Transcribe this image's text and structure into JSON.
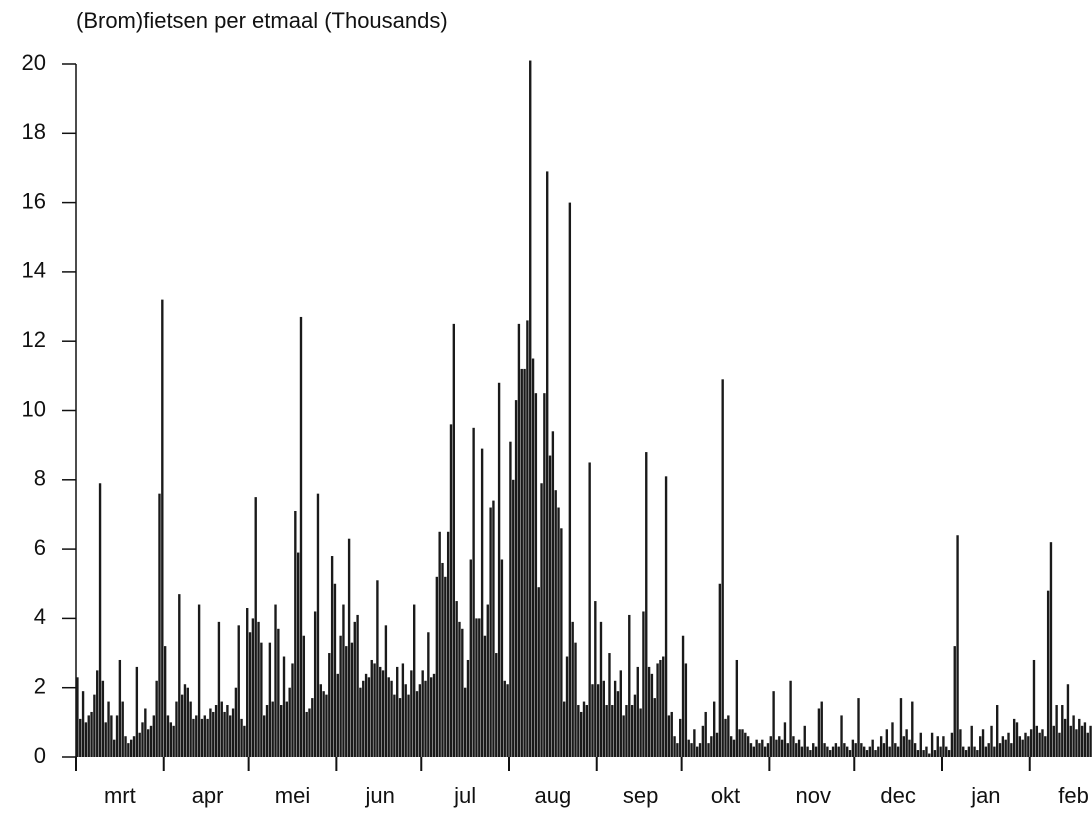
{
  "chart_data": {
    "type": "bar",
    "title": "(Brom)fietsen per etmaal (Thousands)",
    "color": "#1a1a1a",
    "ylim": [
      0,
      20
    ],
    "yticks": [
      0,
      2,
      4,
      6,
      8,
      10,
      12,
      14,
      16,
      18,
      20
    ],
    "categories": [
      null,
      null,
      null,
      null,
      null,
      null,
      null,
      null,
      null,
      null,
      null,
      null,
      null,
      null,
      null,
      "mrt",
      null,
      null,
      null,
      null,
      null,
      null,
      null,
      null,
      null,
      null,
      null,
      null,
      null,
      null,
      null,
      null,
      null,
      null,
      null,
      null,
      null,
      null,
      null,
      null,
      null,
      null,
      null,
      null,
      null,
      null,
      "apr",
      null,
      null,
      null,
      null,
      null,
      null,
      null,
      null,
      null,
      null,
      null,
      null,
      null,
      null,
      null,
      null,
      null,
      null,
      null,
      null,
      null,
      null,
      null,
      null,
      null,
      null,
      null,
      null,
      null,
      "mei",
      null,
      null,
      null,
      null,
      null,
      null,
      null,
      null,
      null,
      null,
      null,
      null,
      null,
      null,
      null,
      null,
      null,
      null,
      null,
      null,
      null,
      null,
      null,
      null,
      null,
      null,
      null,
      null,
      null,
      null,
      "jun",
      null,
      null,
      null,
      null,
      null,
      null,
      null,
      null,
      null,
      null,
      null,
      null,
      null,
      null,
      null,
      null,
      null,
      null,
      null,
      null,
      null,
      null,
      null,
      null,
      null,
      null,
      null,
      null,
      null,
      "jul",
      null,
      null,
      null,
      null,
      null,
      null,
      null,
      null,
      null,
      null,
      null,
      null,
      null,
      null,
      null,
      null,
      null,
      null,
      null,
      null,
      null,
      null,
      null,
      null,
      null,
      null,
      null,
      null,
      null,
      null,
      "aug",
      null,
      null,
      null,
      null,
      null,
      null,
      null,
      null,
      null,
      null,
      null,
      null,
      null,
      null,
      null,
      null,
      null,
      null,
      null,
      null,
      null,
      null,
      null,
      null,
      null,
      null,
      null,
      null,
      null,
      null,
      "sep",
      null,
      null,
      null,
      null,
      null,
      null,
      null,
      null,
      null,
      null,
      null,
      null,
      null,
      null,
      null,
      null,
      null,
      null,
      null,
      null,
      null,
      null,
      null,
      null,
      null,
      null,
      null,
      null,
      null,
      "okt",
      null,
      null,
      null,
      null,
      null,
      null,
      null,
      null,
      null,
      null,
      null,
      null,
      null,
      null,
      null,
      null,
      null,
      null,
      null,
      null,
      null,
      null,
      null,
      null,
      null,
      null,
      null,
      null,
      null,
      null,
      "nov",
      null,
      null,
      null,
      null,
      null,
      null,
      null,
      null,
      null,
      null,
      null,
      null,
      null,
      null,
      null,
      null,
      null,
      null,
      null,
      null,
      null,
      null,
      null,
      null,
      null,
      null,
      null,
      null,
      null,
      "dec",
      null,
      null,
      null,
      null,
      null,
      null,
      null,
      null,
      null,
      null,
      null,
      null,
      null,
      null,
      null,
      null,
      null,
      null,
      null,
      null,
      null,
      null,
      null,
      null,
      null,
      null,
      null,
      null,
      null,
      null,
      "jan",
      null,
      null,
      null,
      null,
      null,
      null,
      null,
      null,
      null,
      null,
      null,
      null,
      null,
      null,
      null,
      null,
      null,
      null,
      null,
      null,
      null,
      null,
      null,
      null,
      null,
      null,
      null,
      null,
      null,
      null,
      "feb",
      null,
      null,
      null,
      null,
      null,
      null
    ],
    "values": [
      2.3,
      1.1,
      1.9,
      1.0,
      1.2,
      1.3,
      1.8,
      2.5,
      7.9,
      2.2,
      1.0,
      1.6,
      1.2,
      0.5,
      1.2,
      2.8,
      1.6,
      0.6,
      0.4,
      0.5,
      0.6,
      2.6,
      0.7,
      1.0,
      1.4,
      0.8,
      0.9,
      1.2,
      2.2,
      7.6,
      13.2,
      3.2,
      1.2,
      1.0,
      0.9,
      1.6,
      4.7,
      1.8,
      2.1,
      2.0,
      1.6,
      1.1,
      1.2,
      4.4,
      1.1,
      1.2,
      1.1,
      1.4,
      1.3,
      1.5,
      3.9,
      1.6,
      1.3,
      1.5,
      1.2,
      1.4,
      2.0,
      3.8,
      1.1,
      0.9,
      4.3,
      3.6,
      4.0,
      7.5,
      3.9,
      3.3,
      1.2,
      1.5,
      3.3,
      1.6,
      4.4,
      3.7,
      1.5,
      2.9,
      1.6,
      2.0,
      2.7,
      7.1,
      5.9,
      12.7,
      3.5,
      1.3,
      1.4,
      1.7,
      4.2,
      7.6,
      2.1,
      1.9,
      1.8,
      3.0,
      5.8,
      5.0,
      2.4,
      3.5,
      4.4,
      3.2,
      6.3,
      3.3,
      3.9,
      4.1,
      2.0,
      2.2,
      2.4,
      2.3,
      2.8,
      2.7,
      5.1,
      2.6,
      2.5,
      3.8,
      2.3,
      2.2,
      1.8,
      2.6,
      1.7,
      2.7,
      2.1,
      1.8,
      2.5,
      4.4,
      1.9,
      2.1,
      2.5,
      2.2,
      3.6,
      2.3,
      2.4,
      5.2,
      6.5,
      5.6,
      5.2,
      6.5,
      9.6,
      12.5,
      4.5,
      3.9,
      3.7,
      2.0,
      2.8,
      5.7,
      9.5,
      4.0,
      4.0,
      8.9,
      3.5,
      4.4,
      7.2,
      7.4,
      3.0,
      10.8,
      5.7,
      2.2,
      2.1,
      9.1,
      8.0,
      10.3,
      12.5,
      11.2,
      11.2,
      12.6,
      20.1,
      11.5,
      10.5,
      4.9,
      7.9,
      10.5,
      16.9,
      8.7,
      9.4,
      7.7,
      7.2,
      6.6,
      1.6,
      2.9,
      16.0,
      3.9,
      3.3,
      1.5,
      1.3,
      1.6,
      1.5,
      8.5,
      2.1,
      4.5,
      2.1,
      3.9,
      2.2,
      1.5,
      3.0,
      1.5,
      2.2,
      1.9,
      2.5,
      1.2,
      1.5,
      4.1,
      1.5,
      1.8,
      2.6,
      1.4,
      4.2,
      8.8,
      2.6,
      2.4,
      1.7,
      2.7,
      2.8,
      2.9,
      8.1,
      1.2,
      1.3,
      0.6,
      0.4,
      1.1,
      3.5,
      2.7,
      0.5,
      0.4,
      0.8,
      0.3,
      0.4,
      0.9,
      1.3,
      0.4,
      0.6,
      1.6,
      0.7,
      5.0,
      10.9,
      1.1,
      1.2,
      0.6,
      0.5,
      2.8,
      0.8,
      0.8,
      0.7,
      0.6,
      0.4,
      0.3,
      0.5,
      0.4,
      0.5,
      0.3,
      0.4,
      0.6,
      1.9,
      0.5,
      0.6,
      0.5,
      1.0,
      0.4,
      2.2,
      0.6,
      0.4,
      0.5,
      0.3,
      0.9,
      0.3,
      0.2,
      0.4,
      0.3,
      1.4,
      1.6,
      0.4,
      0.3,
      0.2,
      0.3,
      0.4,
      0.3,
      1.2,
      0.4,
      0.3,
      0.2,
      0.5,
      0.4,
      1.7,
      0.4,
      0.3,
      0.2,
      0.3,
      0.5,
      0.2,
      0.3,
      0.6,
      0.4,
      0.8,
      0.3,
      1.0,
      0.4,
      0.3,
      1.7,
      0.6,
      0.8,
      0.5,
      1.6,
      0.4,
      0.2,
      0.7,
      0.2,
      0.3,
      0.1,
      0.7,
      0.2,
      0.6,
      0.3,
      0.6,
      0.3,
      0.2,
      0.7,
      3.2,
      6.4,
      0.8,
      0.3,
      0.2,
      0.3,
      0.9,
      0.3,
      0.2,
      0.6,
      0.8,
      0.3,
      0.4,
      0.9,
      0.3,
      1.5,
      0.4,
      0.6,
      0.5,
      0.7,
      0.4,
      1.1,
      1.0,
      0.6,
      0.5,
      0.7,
      0.6,
      0.8,
      2.8,
      0.9,
      0.7,
      0.8,
      0.6,
      4.8,
      6.2,
      0.9,
      1.5,
      0.7,
      1.5,
      1.1,
      2.1,
      0.9,
      1.2,
      0.8,
      1.1,
      0.9,
      1.0,
      0.7,
      0.9
    ]
  }
}
